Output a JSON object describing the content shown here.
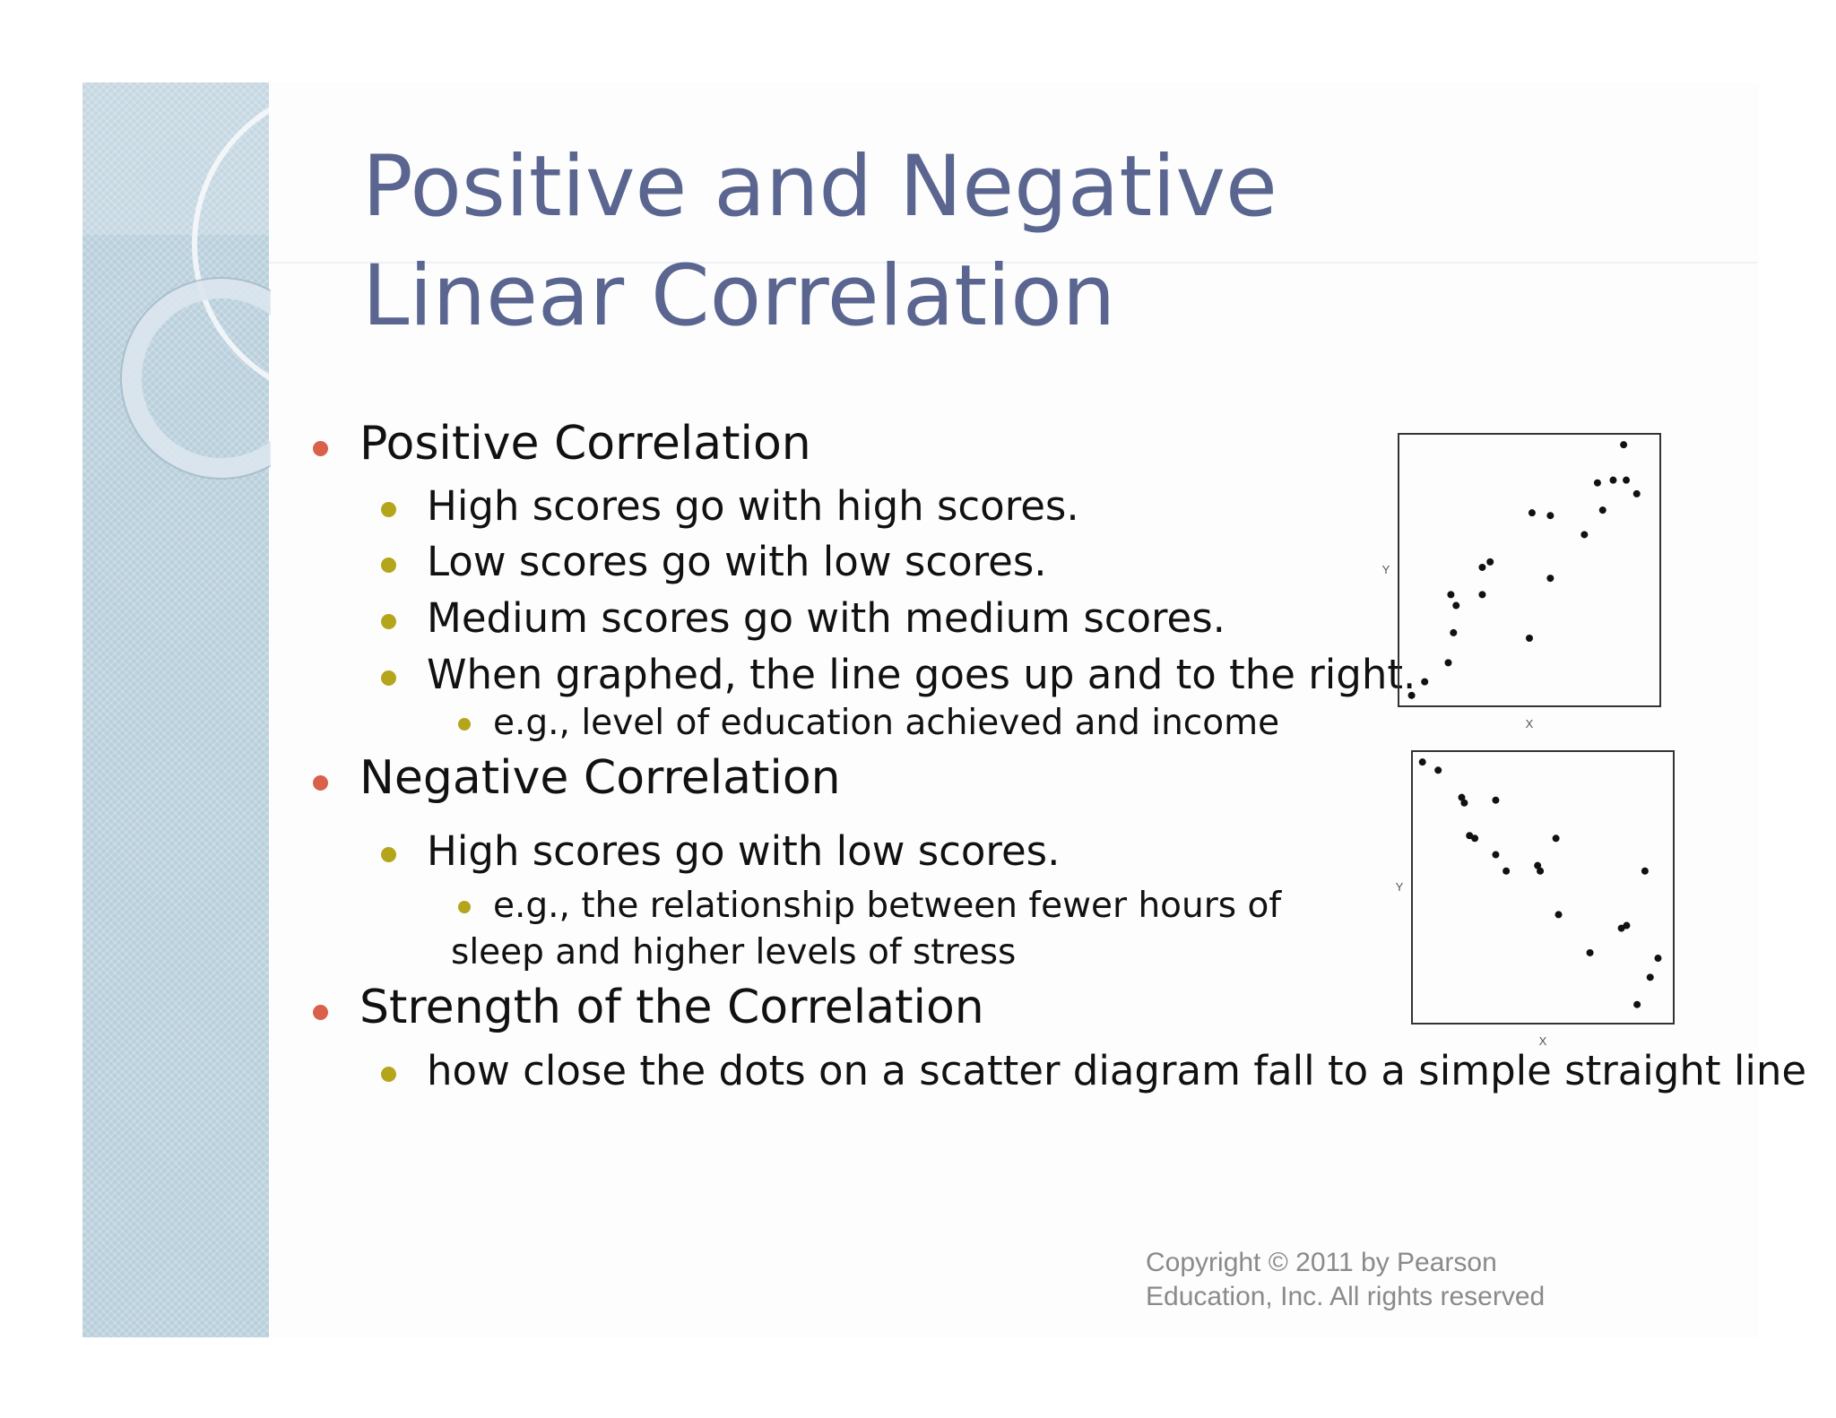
{
  "slide": {
    "title": "Positive and Negative Linear Correlation",
    "copyright_line1": "Copyright © 2011 by Pearson",
    "copyright_line2": "Education, Inc. All rights reserved"
  },
  "bullets": {
    "positive_heading": "Positive Correlation",
    "pos_1": "High scores go with high scores.",
    "pos_2": "Low scores go with low scores.",
    "pos_3": "Medium scores go with medium scores.",
    "pos_4": "When graphed, the line goes up and to the right.",
    "pos_example": "e.g., level of education achieved and income",
    "negative_heading": "Negative Correlation",
    "neg_1": "High scores go with low scores.",
    "neg_example_line1": "e.g., the relationship between fewer hours of",
    "neg_example_line2": "sleep and higher levels of stress",
    "strength_heading": "Strength of the Correlation",
    "strength_1": "how close the dots on a scatter diagram fall to a simple straight line"
  },
  "colors": {
    "title": "#5a6690",
    "level1_bullet": "#d9604a",
    "level2_bullet": "#b5a51b",
    "band": "#b9cfdc"
  },
  "chart_data": [
    {
      "type": "scatter",
      "title": "",
      "xlabel": "X",
      "ylabel": "Y",
      "xlim": [
        0,
        10
      ],
      "ylim": [
        0,
        10
      ],
      "points": [
        [
          0.5,
          0.4
        ],
        [
          1.0,
          0.9
        ],
        [
          1.9,
          1.6
        ],
        [
          2.1,
          2.7
        ],
        [
          2.0,
          4.1
        ],
        [
          2.2,
          3.7
        ],
        [
          3.2,
          4.1
        ],
        [
          3.2,
          5.1
        ],
        [
          3.5,
          5.3
        ],
        [
          5.0,
          2.5
        ],
        [
          5.1,
          7.1
        ],
        [
          5.8,
          7.0
        ],
        [
          5.8,
          4.7
        ],
        [
          7.1,
          6.3
        ],
        [
          7.6,
          8.2
        ],
        [
          7.8,
          7.2
        ],
        [
          8.2,
          8.3
        ],
        [
          8.7,
          8.3
        ],
        [
          8.6,
          9.6
        ],
        [
          9.1,
          7.8
        ]
      ]
    },
    {
      "type": "scatter",
      "title": "",
      "xlabel": "X",
      "ylabel": "Y",
      "xlim": [
        0,
        10
      ],
      "ylim": [
        0,
        10
      ],
      "points": [
        [
          0.4,
          9.6
        ],
        [
          1.0,
          9.3
        ],
        [
          1.9,
          8.3
        ],
        [
          2.0,
          8.1
        ],
        [
          3.2,
          8.2
        ],
        [
          2.2,
          6.9
        ],
        [
          2.4,
          6.8
        ],
        [
          3.2,
          6.2
        ],
        [
          3.6,
          5.6
        ],
        [
          4.8,
          5.8
        ],
        [
          4.9,
          5.6
        ],
        [
          5.5,
          6.8
        ],
        [
          5.6,
          4.0
        ],
        [
          8.0,
          3.5
        ],
        [
          8.2,
          3.6
        ],
        [
          6.8,
          2.6
        ],
        [
          8.6,
          0.7
        ],
        [
          8.9,
          5.6
        ],
        [
          9.1,
          1.7
        ],
        [
          9.4,
          2.4
        ]
      ]
    }
  ]
}
